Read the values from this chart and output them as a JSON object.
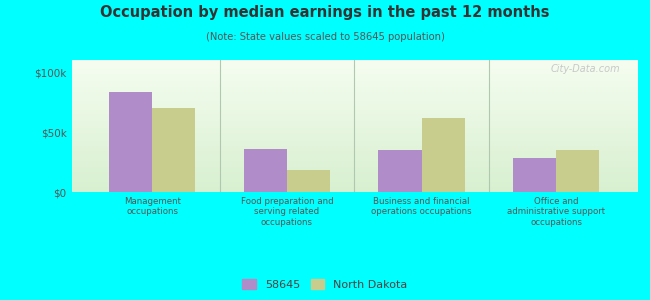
{
  "title": "Occupation by median earnings in the past 12 months",
  "subtitle": "(Note: State values scaled to 58645 population)",
  "categories": [
    "Management\noccupations",
    "Food preparation and\nserving related\noccupations",
    "Business and financial\noperations occupations",
    "Office and\nadministrative support\noccupations"
  ],
  "values_58645": [
    83000,
    36000,
    35000,
    28000
  ],
  "values_nd": [
    70000,
    18000,
    62000,
    35000
  ],
  "color_58645": "#b08cc8",
  "color_nd": "#c8cc8c",
  "ylim": [
    0,
    110000
  ],
  "yticks": [
    0,
    50000,
    100000
  ],
  "yticklabels": [
    "$0",
    "$50k",
    "$100k"
  ],
  "legend_58645": "58645",
  "legend_nd": "North Dakota",
  "background_color_bottom": "#d8f0d0",
  "background_color_top": "#f5fdf0",
  "outer_bg": "#00ffff",
  "watermark": "City-Data.com"
}
